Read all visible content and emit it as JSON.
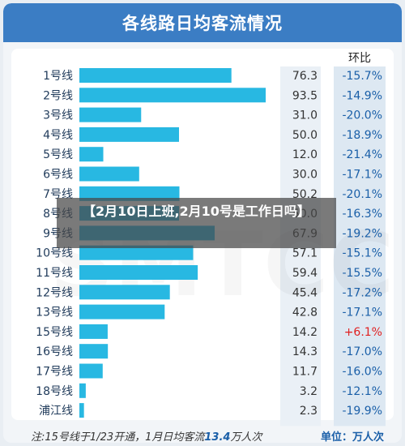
{
  "page": {
    "title": "各线路日均客流情况",
    "overlay_text": "【2月10日上班,2月10号是工作日吗】",
    "watermark": "SMTCC",
    "footer_note_prefix": "注:15号线于1/23开通，1月日均客流",
    "footer_note_value": "13.4",
    "footer_note_suffix": "万人次",
    "unit_label": "单位：万人次"
  },
  "colors": {
    "header": "#3b7dc4",
    "bar": "#28b8e2",
    "negative_change": "#1a5fa8",
    "positive_change": "#e02020",
    "value_column": "#eaf0f6",
    "change_column": "#dde8f2"
  },
  "chart_data": {
    "type": "bar",
    "orientation": "horizontal",
    "title": "各线路日均客流情况",
    "change_header": "环比",
    "unit": "万人次",
    "categories": [
      "1号线",
      "2号线",
      "3号线",
      "4号线",
      "5号线",
      "6号线",
      "7号线",
      "8号线",
      "9号线",
      "10号线",
      "11号线",
      "12号线",
      "13号线",
      "15号线",
      "16号线",
      "17号线",
      "18号线",
      "浦江线"
    ],
    "values": [
      76.3,
      93.5,
      31.0,
      50.0,
      12.0,
      30.0,
      50.2,
      50.0,
      67.9,
      57.1,
      59.4,
      45.4,
      42.8,
      14.2,
      14.3,
      11.7,
      3.2,
      2.3
    ],
    "value_labels": [
      "76.3",
      "93.5",
      "31.0",
      "50.0",
      "12.0",
      "30.0",
      "50.2",
      "50.0",
      "67.9",
      "57.1",
      "59.4",
      "45.4",
      "42.8",
      "14.2",
      "14.3",
      "11.7",
      "3.2",
      "2.3"
    ],
    "change": [
      "-15.7%",
      "-14.9%",
      "-20.0%",
      "-18.9%",
      "-21.4%",
      "-17.1%",
      "-20.1%",
      "-16.3%",
      "-19.2%",
      "-15.1%",
      "-15.5%",
      "-17.2%",
      "-17.1%",
      "+6.1%",
      "-17.0%",
      "-16.0%",
      "-12.1%",
      "-19.9%"
    ],
    "xlim": [
      0,
      100
    ]
  }
}
